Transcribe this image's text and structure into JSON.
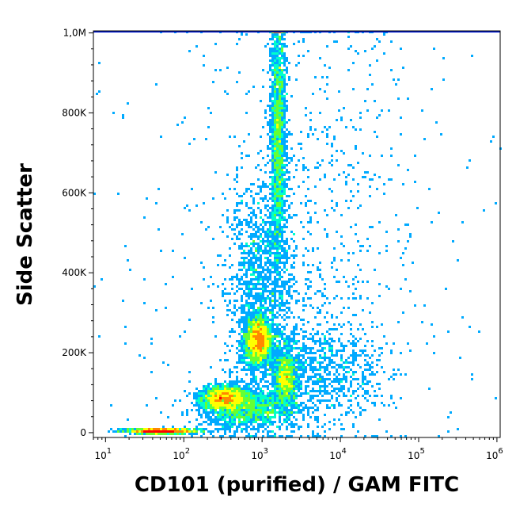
{
  "chart_data": {
    "type": "scatter",
    "subtype": "flow-cytometry-density-dot-plot",
    "title": "",
    "xlabel": "CD101 (purified) / GAM FITC",
    "ylabel": "Side Scatter",
    "x_scale": "log",
    "xlim": [
      7,
      1100000
    ],
    "ylim": [
      -12000,
      1005000
    ],
    "x_ticks": [
      {
        "value": 10,
        "base": "10",
        "exp": "1"
      },
      {
        "value": 100,
        "base": "10",
        "exp": "2"
      },
      {
        "value": 1000,
        "base": "10",
        "exp": "3"
      },
      {
        "value": 10000,
        "base": "10",
        "exp": "4"
      },
      {
        "value": 100000,
        "base": "10",
        "exp": "5"
      },
      {
        "value": 1000000,
        "base": "10",
        "exp": "6"
      }
    ],
    "y_ticks": [
      {
        "value": 0,
        "label": "0"
      },
      {
        "value": 200000,
        "label": "200K"
      },
      {
        "value": 400000,
        "label": "400K"
      },
      {
        "value": 600000,
        "label": "600K"
      },
      {
        "value": 800000,
        "label": "800K"
      },
      {
        "value": 1000000,
        "label": "1,0M"
      }
    ],
    "color_scale": [
      "#0000ff",
      "#00aaff",
      "#00ffcc",
      "#66ff33",
      "#ffff00",
      "#ff8800",
      "#ff0000"
    ],
    "populations": [
      {
        "x": 900,
        "y": 230000,
        "sx": 0.09,
        "sy": 30000,
        "n": 2200
      },
      {
        "x": 330,
        "y": 88000,
        "sx": 0.14,
        "sy": 14000,
        "n": 1700
      },
      {
        "x": 2000,
        "y": 135000,
        "sx": 0.07,
        "sy": 35000,
        "n": 1000
      },
      {
        "x": 1600,
        "y": 740000,
        "sx": 0.05,
        "sy": 160000,
        "n": 1900
      },
      {
        "x": 600,
        "y": 60000,
        "sx": 0.3,
        "sy": 25000,
        "n": 1500
      },
      {
        "x": 50,
        "y": 4000,
        "sx": 0.22,
        "sy": 3000,
        "n": 1400
      },
      {
        "x": 1000,
        "y": 360000,
        "sx": 0.22,
        "sy": 140000,
        "n": 1300
      },
      {
        "x": 5000,
        "y": 150000,
        "sx": 0.45,
        "sy": 60000,
        "n": 900
      },
      {
        "x": 8000,
        "y": 520000,
        "sx": 0.45,
        "sy": 280000,
        "n": 450
      },
      {
        "x": 900,
        "y": 500000,
        "sx": 0.7,
        "sy": 300000,
        "n": 250
      }
    ],
    "scattered_events": 160
  }
}
